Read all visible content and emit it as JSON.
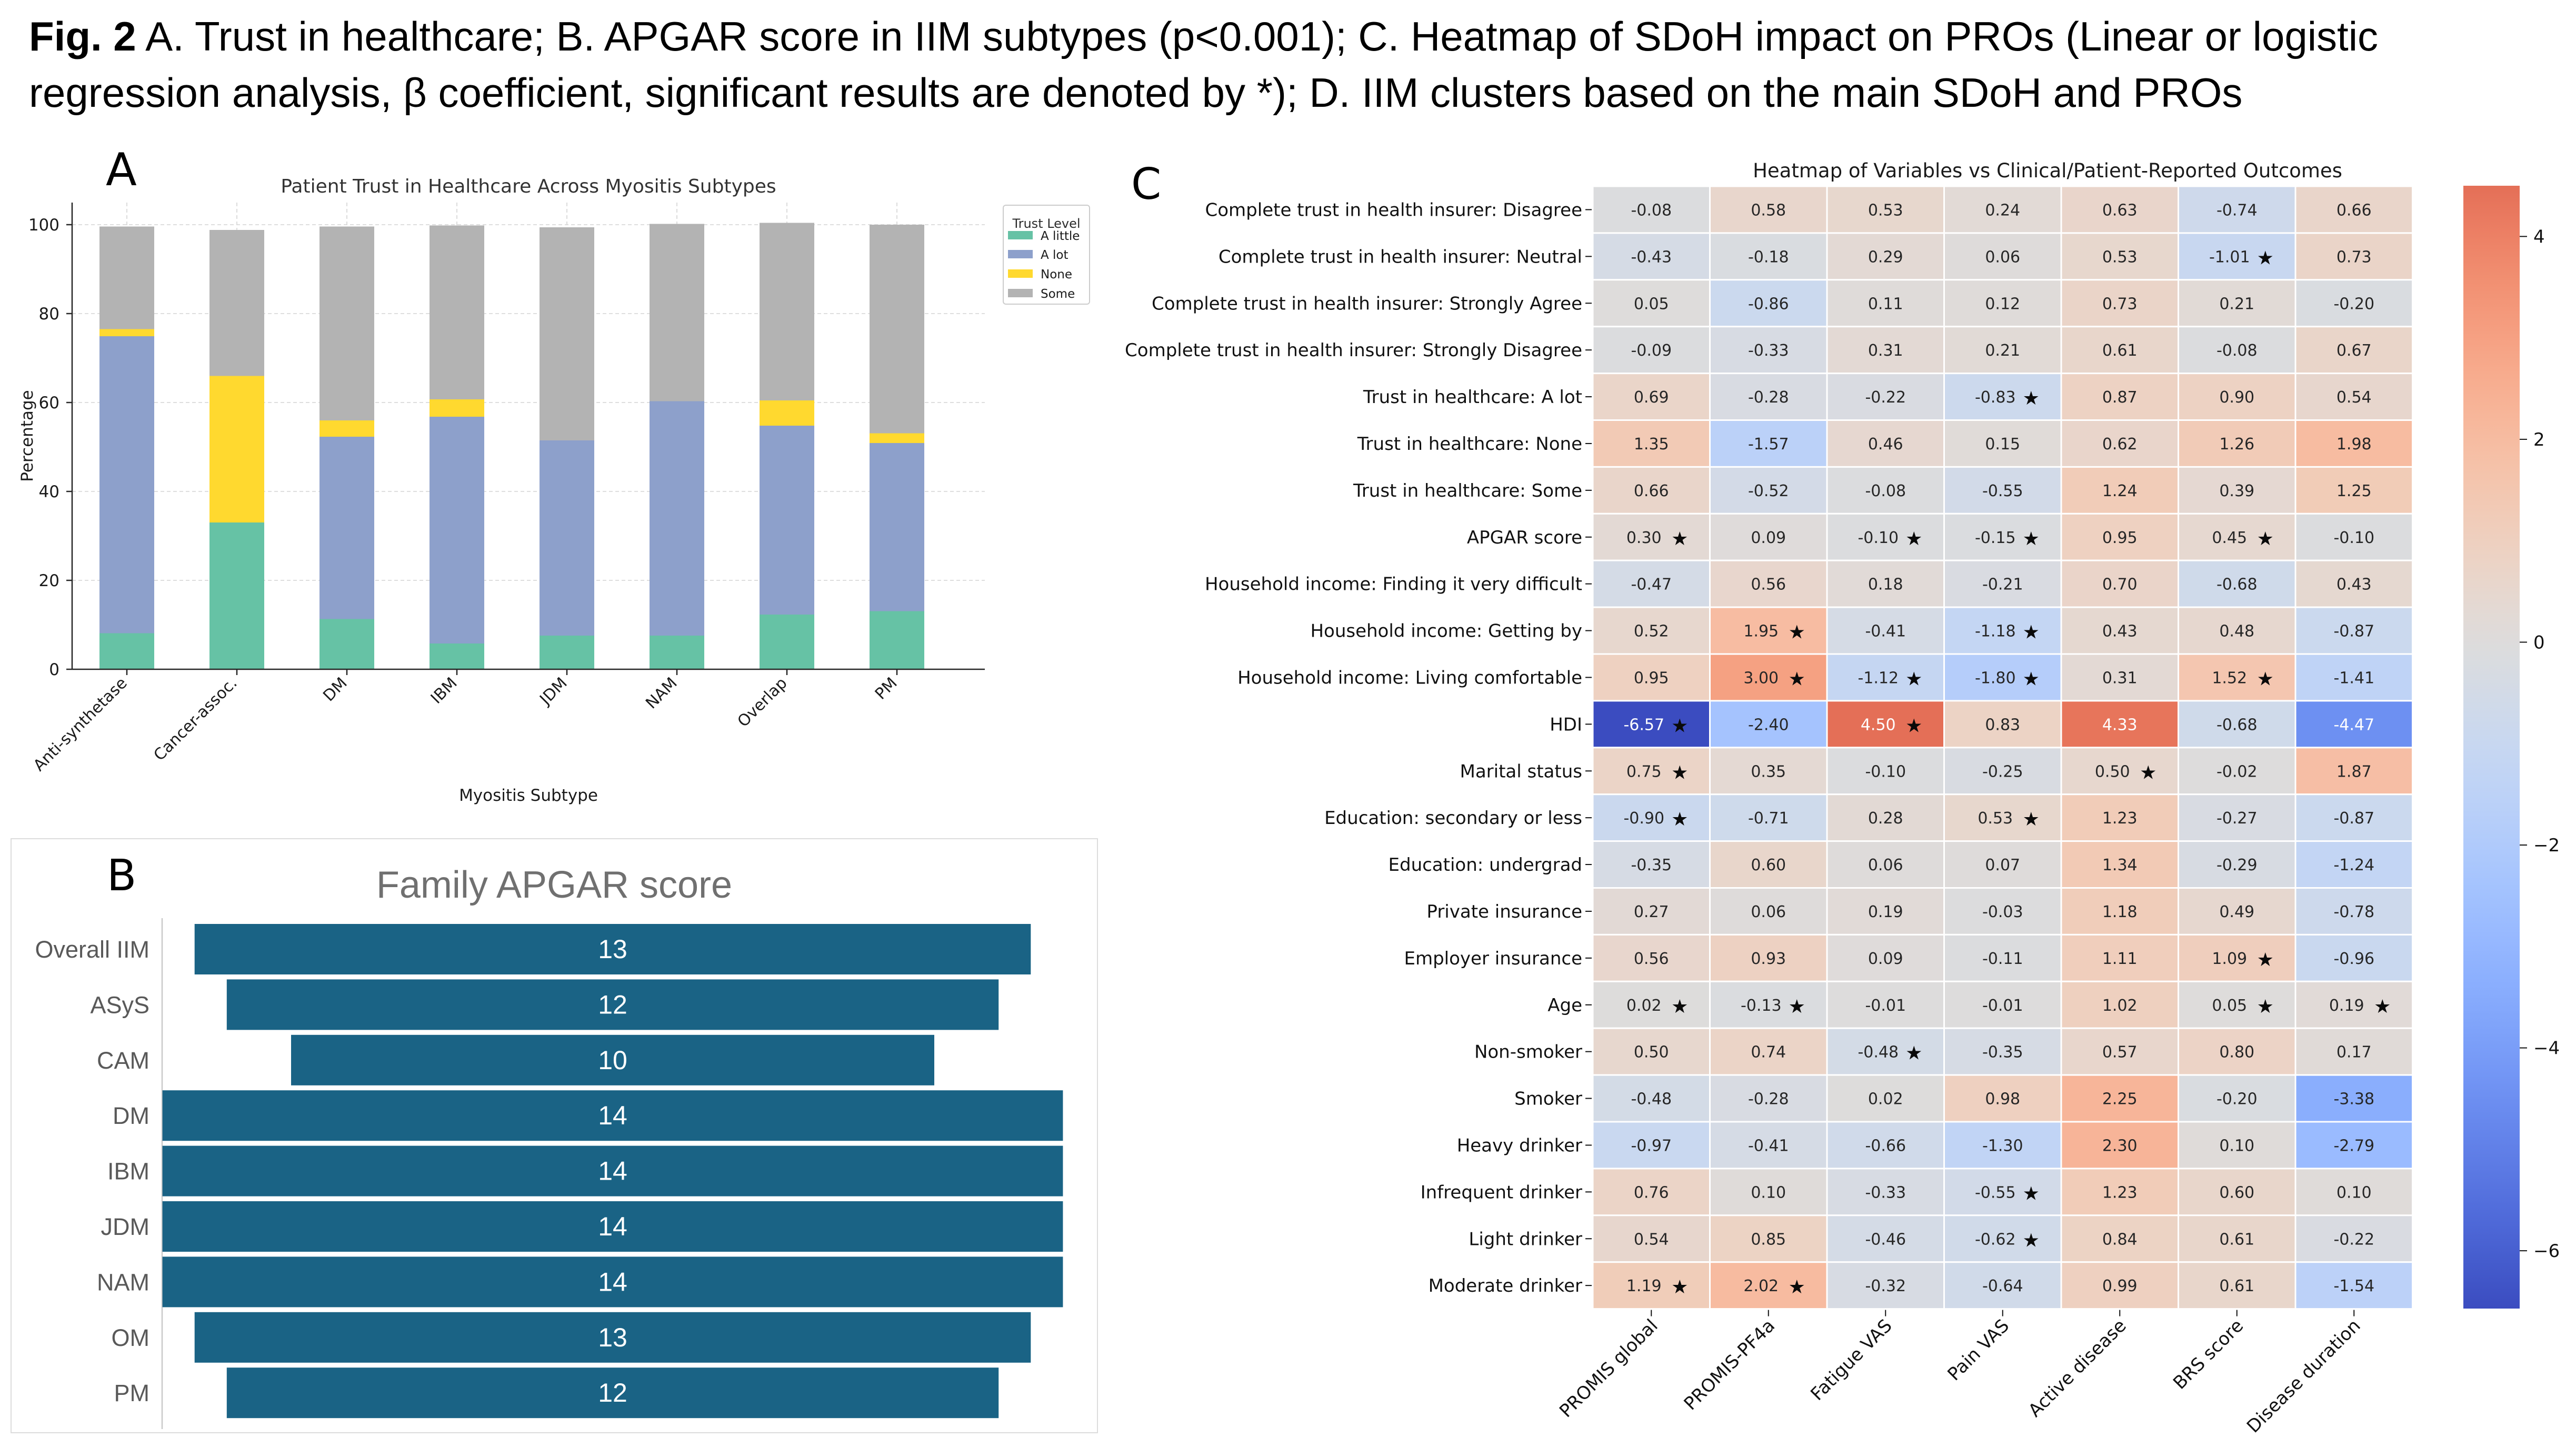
{
  "caption": {
    "fig_label": "Fig. 2",
    "line1": "A. Trust in healthcare; B. APGAR score in IIM subtypes (p<0.001); C. Heatmap of SDoH impact on PROs (Linear or logistic",
    "line2": "regression analysis, β coefficient, significant results are denoted by *); D. IIM clusters based on the main SDoH and PROs"
  },
  "panel_labels": {
    "a": "A",
    "b": "B",
    "c": "C"
  },
  "chart_data": [
    {
      "id": "trust-stacked-bar",
      "type": "bar",
      "stacked": true,
      "title": "Patient Trust in Healthcare Across Myositis Subtypes",
      "xlabel": "Myositis Subtype",
      "ylabel": "Percentage",
      "ylim": [
        0,
        105
      ],
      "yticks": [
        0,
        20,
        40,
        60,
        80,
        100
      ],
      "grid": true,
      "legend_title": "Trust Level",
      "legend_position": "upper right",
      "categories": [
        "Anti-synthetase",
        "Cancer-assoc.",
        "DM",
        "IBM",
        "JDM",
        "NAM",
        "Overlap",
        "PM"
      ],
      "series": [
        {
          "name": "A little",
          "color": "#66c2a5",
          "values": [
            8.1,
            33.0,
            11.3,
            5.8,
            7.6,
            7.6,
            12.3,
            13.1
          ]
        },
        {
          "name": "A lot",
          "color": "#8da0cb",
          "values": [
            66.8,
            0.0,
            41.0,
            51.0,
            43.9,
            52.7,
            42.5,
            37.8
          ]
        },
        {
          "name": "None",
          "color": "#ffd92f",
          "values": [
            1.6,
            33.0,
            3.7,
            3.9,
            0.0,
            0.0,
            5.7,
            2.2
          ]
        },
        {
          "name": "Some",
          "color": "#b3b3b3",
          "values": [
            23.1,
            32.8,
            43.6,
            39.1,
            47.9,
            39.9,
            39.9,
            46.9
          ]
        }
      ]
    },
    {
      "id": "apgar-bar",
      "type": "bar",
      "orientation": "horizontal-centered",
      "title": "Family APGAR score",
      "categories": [
        "Overall IIM",
        "ASyS",
        "CAM",
        "DM",
        "IBM",
        "JDM",
        "NAM",
        "OM",
        "PM"
      ],
      "values": [
        13,
        12,
        10,
        14,
        14,
        14,
        14,
        13,
        12
      ],
      "bar_color": "#1a6385",
      "title_color": "#707070",
      "category_color": "#595959",
      "value_label_color": "#ffffff"
    },
    {
      "id": "sdoh-heatmap",
      "type": "heatmap",
      "title": "Heatmap of Variables vs Clinical/Patient-Reported Outcomes",
      "colormap": "coolwarm",
      "vmin": -6.57,
      "vmax": 4.5,
      "center": 0,
      "colorbar_ticks": [
        4,
        2,
        0,
        -2,
        -4,
        -6
      ],
      "significance_marker": "★",
      "columns": [
        "PROMIS global",
        "PROMIS-PF4a",
        "Fatigue VAS",
        "Pain VAS",
        "Active disease",
        "BRS score",
        "Disease duration"
      ],
      "rows": [
        "Complete trust in health insurer: Disagree",
        "Complete trust in health insurer: Neutral",
        "Complete trust in health insurer: Strongly Agree",
        "Complete trust in health insurer: Strongly Disagree",
        "Trust in healthcare: A lot",
        "Trust in healthcare: None",
        "Trust in healthcare: Some",
        "APGAR score",
        "Household income: Finding it very difficult",
        "Household income: Getting by",
        "Household income: Living comfortable",
        "HDI",
        "Marital status",
        "Education: secondary or less",
        "Education: undergrad",
        "Private insurance",
        "Employer insurance",
        "Age",
        "Non-smoker",
        "Smoker",
        "Heavy drinker",
        "Infrequent drinker",
        "Light drinker",
        "Moderate drinker"
      ],
      "values": [
        [
          -0.08,
          0.58,
          0.53,
          0.24,
          0.63,
          -0.74,
          0.66
        ],
        [
          -0.43,
          -0.18,
          0.29,
          0.06,
          0.53,
          -1.01,
          0.73
        ],
        [
          0.05,
          -0.86,
          0.11,
          0.12,
          0.73,
          0.21,
          -0.2
        ],
        [
          -0.09,
          -0.33,
          0.31,
          0.21,
          0.61,
          -0.08,
          0.67
        ],
        [
          0.69,
          -0.28,
          -0.22,
          -0.83,
          0.87,
          0.9,
          0.54
        ],
        [
          1.35,
          -1.57,
          0.46,
          0.15,
          0.62,
          1.26,
          1.98
        ],
        [
          0.66,
          -0.52,
          -0.08,
          -0.55,
          1.24,
          0.39,
          1.25
        ],
        [
          0.3,
          0.09,
          -0.1,
          -0.15,
          0.95,
          0.45,
          -0.1
        ],
        [
          -0.47,
          0.56,
          0.18,
          -0.21,
          0.7,
          -0.68,
          0.43
        ],
        [
          0.52,
          1.95,
          -0.41,
          -1.18,
          0.43,
          0.48,
          -0.87
        ],
        [
          0.95,
          3.0,
          -1.12,
          -1.8,
          0.31,
          1.52,
          -1.41
        ],
        [
          -6.57,
          -2.4,
          4.5,
          0.83,
          4.33,
          -0.68,
          -4.47
        ],
        [
          0.75,
          0.35,
          -0.1,
          -0.25,
          0.5,
          -0.02,
          1.87
        ],
        [
          -0.9,
          -0.71,
          0.28,
          0.53,
          1.23,
          -0.27,
          -0.87
        ],
        [
          -0.35,
          0.6,
          0.06,
          0.07,
          1.34,
          -0.29,
          -1.24
        ],
        [
          0.27,
          0.06,
          0.19,
          -0.03,
          1.18,
          0.49,
          -0.78
        ],
        [
          0.56,
          0.93,
          0.09,
          -0.11,
          1.11,
          1.09,
          -0.96
        ],
        [
          0.02,
          -0.13,
          -0.01,
          -0.01,
          1.02,
          0.05,
          0.19
        ],
        [
          0.5,
          0.74,
          -0.48,
          -0.35,
          0.57,
          0.8,
          0.17
        ],
        [
          -0.48,
          -0.28,
          0.02,
          0.98,
          2.25,
          -0.2,
          -3.38
        ],
        [
          -0.97,
          -0.41,
          -0.66,
          -1.3,
          2.3,
          0.1,
          -2.79
        ],
        [
          0.76,
          0.1,
          -0.33,
          -0.55,
          1.23,
          0.6,
          0.1
        ],
        [
          0.54,
          0.85,
          -0.46,
          -0.62,
          0.84,
          0.61,
          -0.22
        ],
        [
          1.19,
          2.02,
          -0.32,
          -0.64,
          0.99,
          0.61,
          -1.54
        ]
      ],
      "stars": [
        [],
        [
          5
        ],
        [],
        [],
        [
          3
        ],
        [],
        [],
        [
          0,
          2,
          3,
          5
        ],
        [],
        [
          1,
          3
        ],
        [
          1,
          2,
          3,
          5
        ],
        [
          0,
          2
        ],
        [
          0,
          4
        ],
        [
          0,
          3
        ],
        [],
        [],
        [
          5
        ],
        [
          0,
          1,
          5,
          6
        ],
        [
          2
        ],
        [],
        [],
        [
          3
        ],
        [
          3
        ],
        [
          0,
          1
        ]
      ]
    }
  ],
  "coolwarm_lut": [
    [
      "0.0",
      "#3b4cc0"
    ],
    [
      "0.0312",
      "#445acc"
    ],
    [
      "0.0625",
      "#4e68d8"
    ],
    [
      "0.0938",
      "#5875e1"
    ],
    [
      "0.125",
      "#6282ea"
    ],
    [
      "0.1562",
      "#6c8ff1"
    ],
    [
      "0.1875",
      "#779af7"
    ],
    [
      "0.2188",
      "#82a6fb"
    ],
    [
      "0.25",
      "#8db0fe"
    ],
    [
      "0.2812",
      "#98b9ff"
    ],
    [
      "0.3125",
      "#a3c2fe"
    ],
    [
      "0.3438",
      "#aec9fc"
    ],
    [
      "0.375",
      "#b9d0f9"
    ],
    [
      "0.4062",
      "#c3d5f4"
    ],
    [
      "0.4375",
      "#ccd9ed"
    ],
    [
      "0.4688",
      "#d5dbe5"
    ],
    [
      "0.5",
      "#dddcdc"
    ],
    [
      "0.5312",
      "#e5d8d1"
    ],
    [
      "0.5625",
      "#ecd3c5"
    ],
    [
      "0.5938",
      "#f1ccb8"
    ],
    [
      "0.625",
      "#f5c4ac"
    ],
    [
      "0.6562",
      "#f7ba9f"
    ],
    [
      "0.6875",
      "#f7b093"
    ],
    [
      "0.7188",
      "#f6a586"
    ],
    [
      "0.75",
      "#f4987a"
    ],
    [
      "0.7812",
      "#f08b6e"
    ],
    [
      "0.8125",
      "#eb7d62"
    ],
    [
      "0.8438",
      "#e46e56"
    ],
    [
      "0.875",
      "#dd5f4b"
    ],
    [
      "0.9062",
      "#d44e41"
    ],
    [
      "0.9375",
      "#ca3b37"
    ],
    [
      "0.9688",
      "#be242e"
    ],
    [
      "1.0",
      "#b40426"
    ]
  ]
}
